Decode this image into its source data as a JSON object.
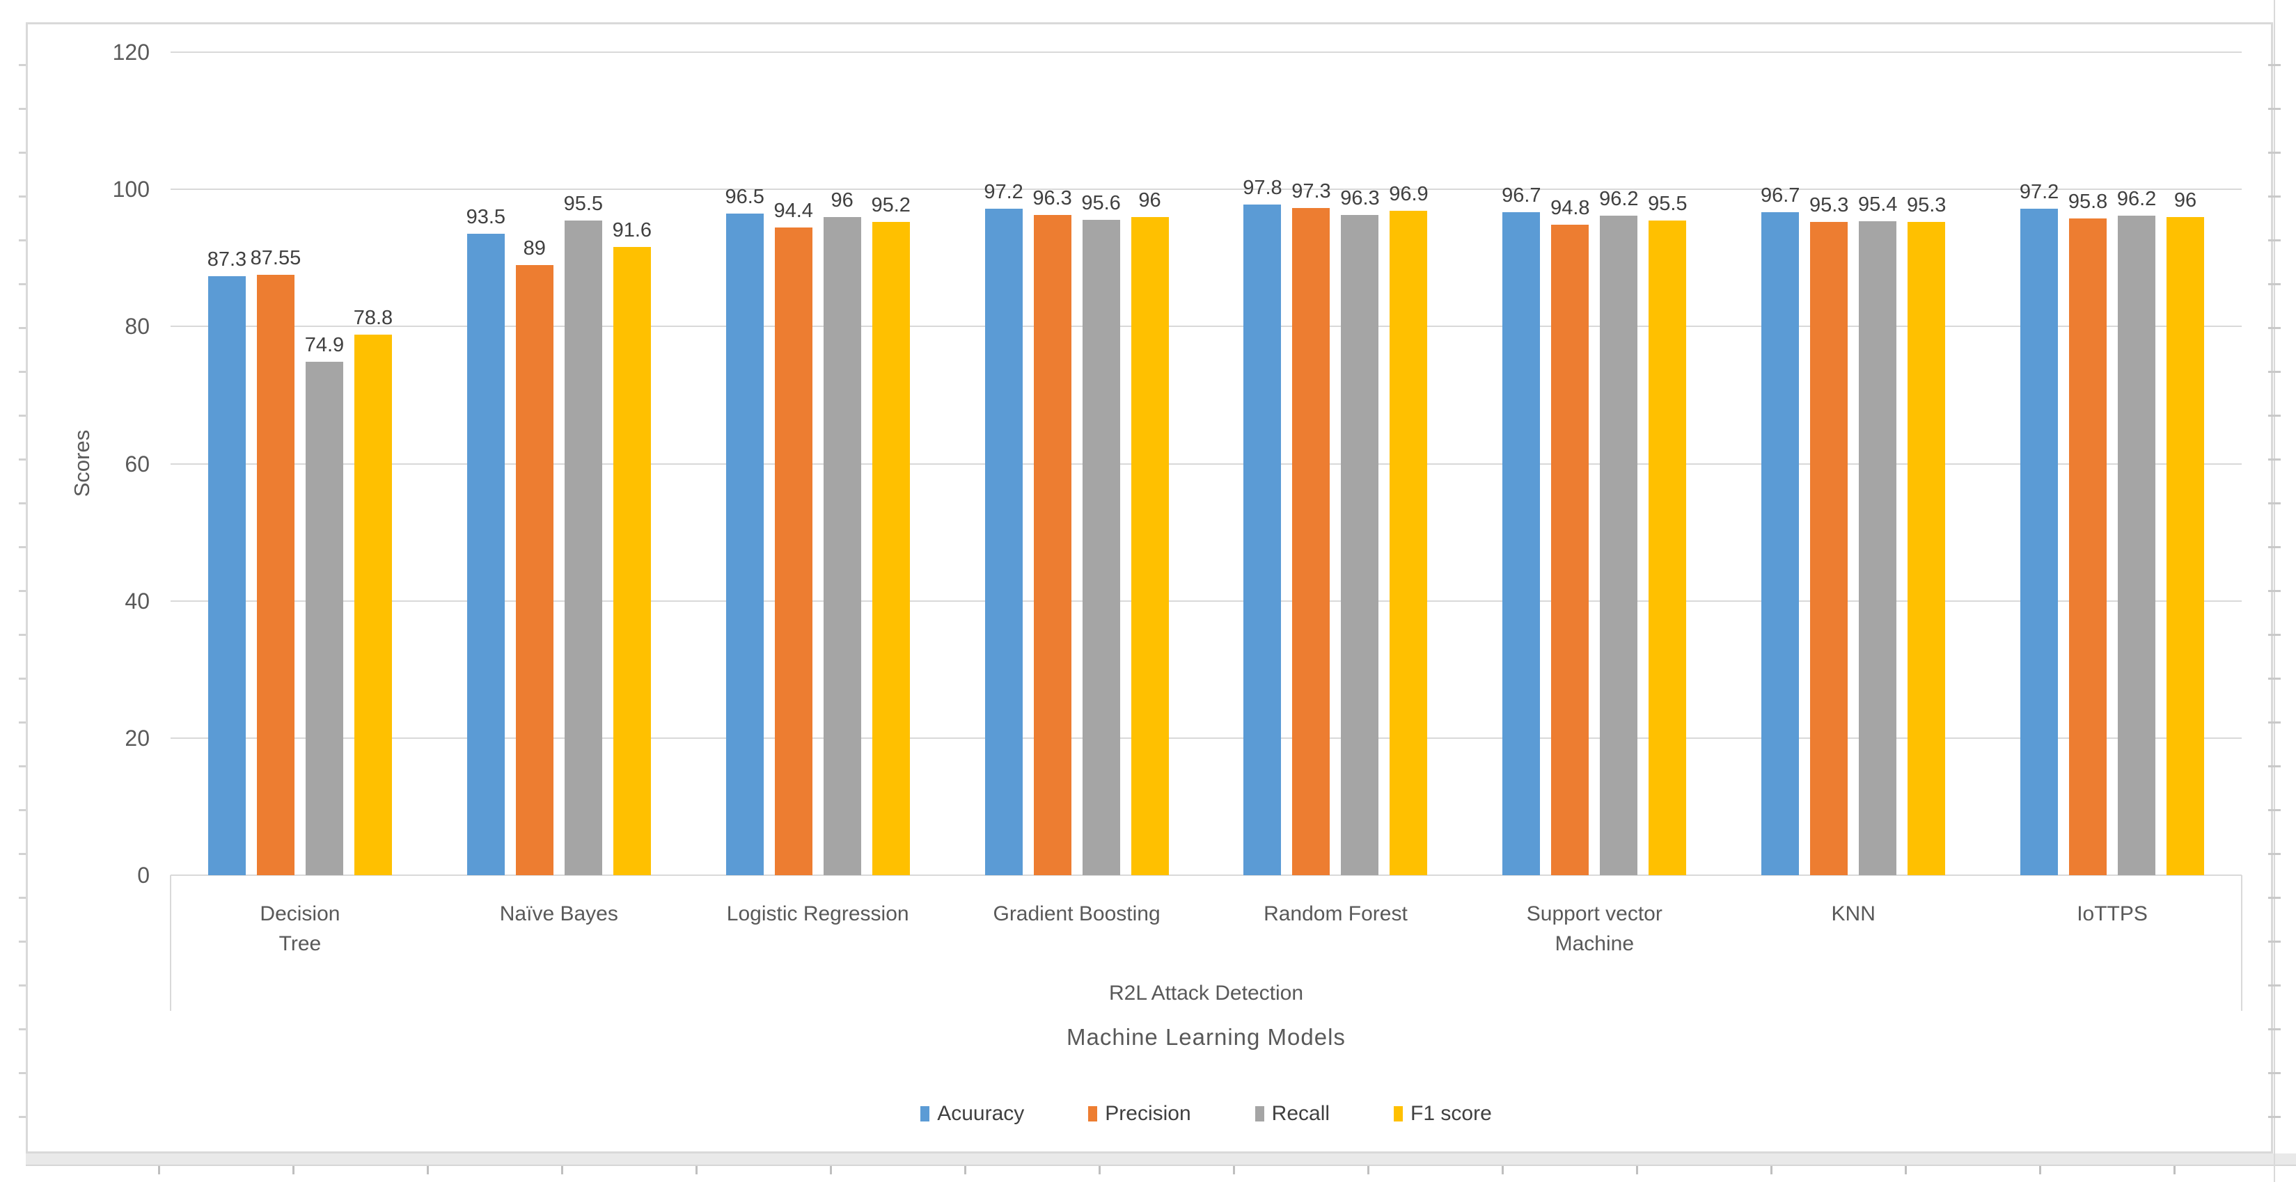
{
  "chart_data": {
    "type": "bar",
    "title": "",
    "categories": [
      "Decision\nTree",
      "Naïve Bayes",
      "Logistic Regression",
      "Gradient Boosting",
      "Random Forest",
      "Support vector\nMachine",
      "KNN",
      "IoTTPS"
    ],
    "series": [
      {
        "name": "Acuuracy",
        "color": "#5B9BD5",
        "values": [
          87.3,
          93.5,
          96.5,
          97.2,
          97.8,
          96.7,
          96.7,
          97.2
        ]
      },
      {
        "name": "Precision",
        "color": "#ED7D31",
        "values": [
          87.55,
          89,
          94.4,
          96.3,
          97.3,
          94.8,
          95.3,
          95.8
        ]
      },
      {
        "name": "Recall",
        "color": "#A5A5A5",
        "values": [
          74.9,
          95.5,
          96,
          95.6,
          96.3,
          96.2,
          95.4,
          96.2
        ]
      },
      {
        "name": "F1 score",
        "color": "#FFC000",
        "values": [
          78.8,
          91.6,
          95.2,
          96,
          96.9,
          95.5,
          95.3,
          96
        ]
      }
    ],
    "group_label": "R2L Attack Detection",
    "xlabel": "Machine Learning Models",
    "ylabel": "Scores",
    "ylim": [
      0,
      120
    ],
    "yticks": [
      0,
      20,
      40,
      60,
      80,
      100,
      120
    ],
    "grid": true,
    "legend_position": "bottom",
    "data_labels": true,
    "colors": {
      "grid": "#D9D9D9",
      "axis_text": "#595959",
      "value_label_text": "#404040",
      "frame_border": "#D9D9D9"
    }
  }
}
